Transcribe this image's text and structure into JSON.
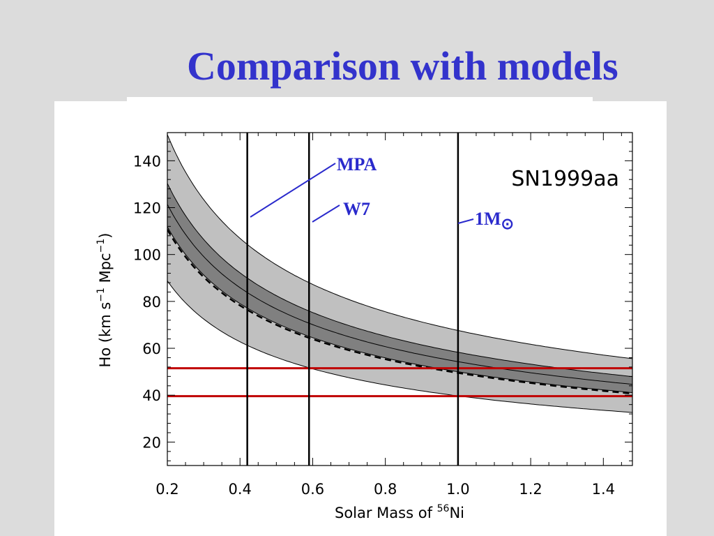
{
  "slide": {
    "title": "Comparison with models"
  },
  "chart_data": {
    "type": "area",
    "title": "SN1999aa",
    "xlabel": {
      "text": "Solar Mass of ",
      "sup": "56",
      "suffix": "Ni"
    },
    "ylabel": {
      "p1": "Ho (km s",
      "s1": "−1",
      "p2": " Mpc",
      "s2": "−1",
      "p3": ")"
    },
    "xlim": [
      0.2,
      1.48
    ],
    "ylim": [
      10,
      152
    ],
    "xticks": [
      {
        "v": 0.2,
        "label": "0.2"
      },
      {
        "v": 0.4,
        "label": "0.4"
      },
      {
        "v": 0.6,
        "label": "0.6"
      },
      {
        "v": 0.8,
        "label": "0.8"
      },
      {
        "v": 1.0,
        "label": "1.0"
      },
      {
        "v": 1.2,
        "label": "1.2"
      },
      {
        "v": 1.4,
        "label": "1.4"
      }
    ],
    "yticks": [
      {
        "v": 20,
        "label": "20"
      },
      {
        "v": 40,
        "label": "40"
      },
      {
        "v": 60,
        "label": "60"
      },
      {
        "v": 80,
        "label": "80"
      },
      {
        "v": 100,
        "label": "100"
      },
      {
        "v": 120,
        "label": "120"
      },
      {
        "v": 140,
        "label": "140"
      }
    ],
    "grid": false,
    "curve_law": "H = k / sqrt(M)",
    "bands": {
      "outer": {
        "upper_k": 67.6,
        "lower_k": 39.7,
        "color": "#c0c0c0"
      },
      "inner": {
        "upper_k": 58.3,
        "lower_k": 50.0,
        "color": "#808080"
      }
    },
    "series": [
      {
        "k": 54.3,
        "style": "solid"
      },
      {
        "k": 49.5,
        "style": "dashed"
      }
    ],
    "horizontal_lines": [
      {
        "y": 51.5,
        "color": "#c00000"
      },
      {
        "y": 39.6,
        "color": "#c00000"
      }
    ],
    "vertical_lines": [
      {
        "x": 0.42,
        "label": "MPA"
      },
      {
        "x": 0.59,
        "label": "W7"
      },
      {
        "x": 1.0,
        "label": "1M",
        "sub": "⊙"
      }
    ]
  }
}
